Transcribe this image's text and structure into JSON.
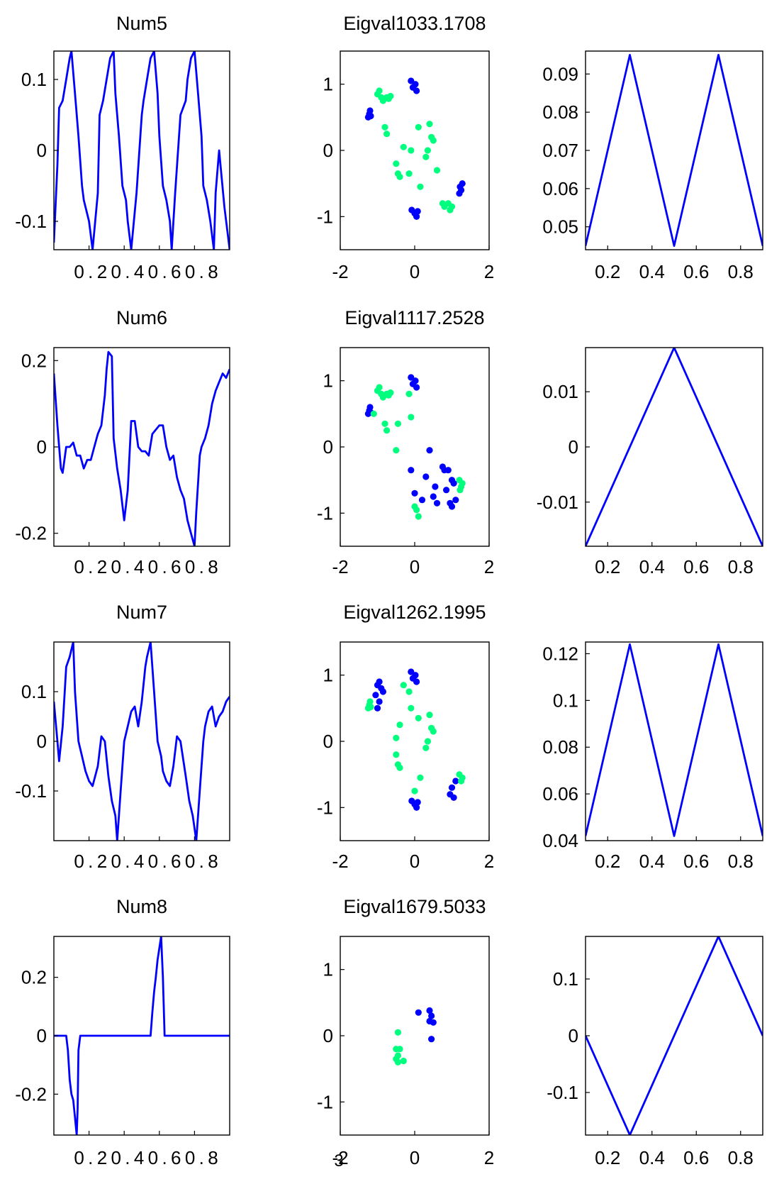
{
  "page_number": "3",
  "colors": {
    "line": "#0000ff",
    "cluster_a": "#0000ff",
    "cluster_b": "#00ff7f",
    "background": "#ffffff",
    "axis": "#000000"
  },
  "chart_data": [
    {
      "type": "line",
      "title": "Num5",
      "xlim": [
        0,
        1
      ],
      "ylim": [
        -0.14,
        0.14
      ],
      "x_tick_labels": [
        "0.20.40.60.8"
      ],
      "y_ticks": [
        0.1,
        0,
        -0.1
      ],
      "y_tick_labels": [
        "0.1",
        "0",
        "-0.1"
      ],
      "series": [
        {
          "x": [
            0,
            0.02,
            0.03,
            0.05,
            0.07,
            0.09,
            0.1,
            0.12,
            0.14,
            0.16,
            0.17,
            0.2,
            0.22,
            0.25,
            0.26,
            0.28,
            0.3,
            0.32,
            0.34,
            0.35,
            0.37,
            0.39,
            0.41,
            0.42,
            0.44,
            0.47,
            0.5,
            0.51,
            0.53,
            0.55,
            0.57,
            0.59,
            0.6,
            0.62,
            0.64,
            0.66,
            0.67,
            0.69,
            0.72,
            0.75,
            0.76,
            0.78,
            0.8,
            0.82,
            0.84,
            0.85,
            0.87,
            0.89,
            0.91,
            0.92,
            0.94,
            0.97,
            1
          ],
          "y": [
            -0.13,
            -0.02,
            0.06,
            0.07,
            0.1,
            0.13,
            0.14,
            0.08,
            0.02,
            -0.05,
            -0.07,
            -0.1,
            -0.14,
            -0.06,
            0.05,
            0.07,
            0.1,
            0.13,
            0.14,
            0.08,
            0.02,
            -0.05,
            -0.07,
            -0.1,
            -0.14,
            -0.06,
            0.05,
            0.07,
            0.1,
            0.13,
            0.14,
            0.08,
            0.02,
            -0.05,
            -0.07,
            -0.1,
            -0.14,
            -0.06,
            0.05,
            0.07,
            0.1,
            0.13,
            0.14,
            0.08,
            0.02,
            -0.05,
            -0.07,
            -0.1,
            -0.14,
            -0.06,
            0.0,
            -0.08,
            -0.14
          ]
        }
      ]
    },
    {
      "type": "scatter",
      "title": "Eigval1033.1708",
      "xlim": [
        -2,
        2
      ],
      "ylim": [
        -1.5,
        1.5
      ],
      "x_ticks": [
        -2,
        0,
        2
      ],
      "x_tick_labels": [
        "-2",
        "0",
        "2"
      ],
      "y_ticks": [
        1,
        0,
        -1
      ],
      "y_tick_labels": [
        "1",
        "0",
        "-1"
      ],
      "series": [
        {
          "x": [
            -1.25,
            -1.22,
            -1.2,
            -1.18,
            -0.1,
            -0.05,
            0.02,
            0.05,
            -0.08,
            0.0,
            0.05,
            0.08,
            1.22,
            1.25,
            1.28,
            1.2
          ],
          "y": [
            0.5,
            0.55,
            0.6,
            0.52,
            1.05,
            0.95,
            1.0,
            0.9,
            -0.9,
            -0.95,
            -1.0,
            -0.92,
            -0.55,
            -0.6,
            -0.5,
            -0.65
          ]
        },
        {
          "x": [
            -1.0,
            -0.95,
            -0.9,
            -0.85,
            -0.75,
            -0.7,
            -0.65,
            -0.8,
            -0.75,
            -0.5,
            -0.45,
            -0.4,
            -0.3,
            -0.15,
            -0.1,
            0.1,
            0.15,
            0.4,
            0.45,
            0.5,
            0.35,
            0.3,
            0.6,
            0.75,
            0.8,
            0.9,
            0.95,
            1.0
          ],
          "y": [
            0.85,
            0.9,
            0.8,
            0.75,
            0.8,
            0.78,
            0.82,
            0.35,
            0.25,
            -0.2,
            -0.35,
            -0.4,
            0.05,
            -0.35,
            0.0,
            0.35,
            -0.55,
            0.4,
            0.2,
            0.15,
            0.0,
            -0.1,
            -0.3,
            -0.8,
            -0.85,
            -0.8,
            -0.9,
            -0.85
          ]
        }
      ]
    },
    {
      "type": "line",
      "title": "",
      "xlim": [
        0.1,
        0.9
      ],
      "ylim": [
        0.044,
        0.096
      ],
      "x_ticks": [
        0.2,
        0.4,
        0.6,
        0.8
      ],
      "x_tick_labels": [
        "0.2",
        "0.4",
        "0.6",
        "0.8"
      ],
      "y_ticks": [
        0.09,
        0.08,
        0.07,
        0.06,
        0.05
      ],
      "y_tick_labels": [
        "0.09",
        "0.08",
        "0.07",
        "0.06",
        "0.05"
      ],
      "series": [
        {
          "x": [
            0.1,
            0.3,
            0.5,
            0.7,
            0.9
          ],
          "y": [
            0.045,
            0.095,
            0.045,
            0.095,
            0.045
          ]
        }
      ]
    },
    {
      "type": "line",
      "title": "Num6",
      "xlim": [
        0,
        1
      ],
      "ylim": [
        -0.23,
        0.23
      ],
      "x_tick_labels": [
        "0.20.40.60.8"
      ],
      "y_ticks": [
        0.2,
        0,
        -0.2
      ],
      "y_tick_labels": [
        "0.2",
        "0",
        "-0.2"
      ],
      "series": [
        {
          "x": [
            0,
            0.02,
            0.04,
            0.05,
            0.07,
            0.09,
            0.11,
            0.13,
            0.15,
            0.17,
            0.19,
            0.21,
            0.23,
            0.25,
            0.27,
            0.29,
            0.3,
            0.31,
            0.33,
            0.34,
            0.36,
            0.38,
            0.4,
            0.42,
            0.44,
            0.46,
            0.48,
            0.5,
            0.52,
            0.54,
            0.56,
            0.58,
            0.6,
            0.62,
            0.64,
            0.66,
            0.68,
            0.7,
            0.72,
            0.74,
            0.76,
            0.78,
            0.8,
            0.81,
            0.83,
            0.84,
            0.86,
            0.88,
            0.9,
            0.92,
            0.94,
            0.96,
            0.98,
            1
          ],
          "y": [
            0.17,
            0.05,
            -0.05,
            -0.06,
            0.0,
            0.0,
            0.01,
            -0.02,
            -0.02,
            -0.05,
            -0.03,
            -0.03,
            0.0,
            0.03,
            0.05,
            0.12,
            0.18,
            0.22,
            0.21,
            0.02,
            -0.05,
            -0.1,
            -0.17,
            -0.1,
            0.06,
            0.06,
            0.0,
            -0.01,
            -0.01,
            -0.02,
            0.03,
            0.04,
            0.05,
            0.05,
            0.0,
            -0.03,
            -0.02,
            -0.07,
            -0.1,
            -0.12,
            -0.17,
            -0.2,
            -0.23,
            -0.15,
            -0.02,
            0.0,
            0.02,
            0.05,
            0.1,
            0.13,
            0.15,
            0.17,
            0.16,
            0.18
          ]
        }
      ]
    },
    {
      "type": "scatter",
      "title": "Eigval1117.2528",
      "xlim": [
        -2,
        2
      ],
      "ylim": [
        -1.5,
        1.5
      ],
      "x_ticks": [
        -2,
        0,
        2
      ],
      "x_tick_labels": [
        "-2",
        "0",
        "2"
      ],
      "y_ticks": [
        1,
        0,
        -1
      ],
      "y_tick_labels": [
        "1",
        "0",
        "-1"
      ],
      "series": [
        {
          "x": [
            -1.25,
            -1.22,
            -1.2,
            -1.18,
            -0.1,
            -0.05,
            0.02,
            0.05,
            -0.1,
            0.0,
            0.3,
            0.2,
            0.4,
            0.5,
            0.55,
            0.6,
            0.75,
            0.8,
            0.85,
            0.95,
            1.0,
            1.05,
            1.1,
            1.0,
            0.9
          ],
          "y": [
            0.5,
            0.55,
            0.6,
            0.52,
            1.05,
            0.95,
            1.0,
            0.9,
            -0.35,
            -0.7,
            -0.45,
            -0.8,
            -0.05,
            -0.75,
            -0.6,
            -0.85,
            -0.3,
            -0.35,
            -0.65,
            -0.85,
            -0.9,
            -0.55,
            -0.8,
            -0.5,
            -0.35
          ]
        },
        {
          "x": [
            -1.0,
            -0.95,
            -0.9,
            -0.85,
            -0.75,
            -0.7,
            -0.65,
            -0.8,
            -0.75,
            -0.5,
            -0.45,
            -1.1,
            -0.15,
            -0.1,
            0.0,
            0.05,
            0.1,
            1.2,
            1.25,
            1.28,
            1.22
          ],
          "y": [
            0.85,
            0.9,
            0.8,
            0.75,
            0.8,
            0.78,
            0.82,
            0.35,
            0.25,
            -0.05,
            0.35,
            0.5,
            0.8,
            0.45,
            -0.9,
            -0.95,
            -1.05,
            -0.5,
            -0.6,
            -0.55,
            -0.65
          ]
        }
      ]
    },
    {
      "type": "line",
      "title": "",
      "xlim": [
        0.1,
        0.9
      ],
      "ylim": [
        -0.018,
        0.018
      ],
      "x_ticks": [
        0.2,
        0.4,
        0.6,
        0.8
      ],
      "x_tick_labels": [
        "0.2",
        "0.4",
        "0.6",
        "0.8"
      ],
      "y_ticks": [
        0.01,
        0,
        -0.01
      ],
      "y_tick_labels": [
        "0.01",
        "0",
        "-0.01"
      ],
      "series": [
        {
          "x": [
            0.1,
            0.5,
            0.9
          ],
          "y": [
            -0.018,
            0.018,
            -0.018
          ]
        }
      ]
    },
    {
      "type": "line",
      "title": "Num7",
      "xlim": [
        0,
        1
      ],
      "ylim": [
        -0.2,
        0.2
      ],
      "x_tick_labels": [
        "0.20.40.60.8"
      ],
      "y_ticks": [
        0.1,
        0,
        -0.1
      ],
      "y_tick_labels": [
        "0.1",
        "0",
        "-0.1"
      ],
      "series": [
        {
          "x": [
            0,
            0.02,
            0.03,
            0.05,
            0.07,
            0.09,
            0.11,
            0.12,
            0.14,
            0.16,
            0.18,
            0.2,
            0.22,
            0.25,
            0.27,
            0.29,
            0.31,
            0.33,
            0.35,
            0.36,
            0.38,
            0.4,
            0.42,
            0.44,
            0.46,
            0.48,
            0.5,
            0.52,
            0.53,
            0.55,
            0.57,
            0.59,
            0.61,
            0.62,
            0.64,
            0.66,
            0.68,
            0.7,
            0.72,
            0.75,
            0.77,
            0.79,
            0.81,
            0.83,
            0.85,
            0.86,
            0.88,
            0.9,
            0.92,
            0.94,
            0.96,
            0.98,
            1
          ],
          "y": [
            0.08,
            0.0,
            -0.04,
            0.03,
            0.15,
            0.17,
            0.2,
            0.1,
            0.0,
            -0.03,
            -0.06,
            -0.08,
            -0.09,
            -0.05,
            0.01,
            0.0,
            -0.07,
            -0.12,
            -0.15,
            -0.2,
            -0.1,
            0.0,
            0.03,
            0.06,
            0.07,
            0.03,
            0.08,
            0.15,
            0.17,
            0.2,
            0.1,
            0.0,
            -0.03,
            -0.06,
            -0.08,
            -0.09,
            -0.05,
            0.01,
            0.0,
            -0.07,
            -0.12,
            -0.15,
            -0.2,
            -0.1,
            0.0,
            0.03,
            0.06,
            0.07,
            0.03,
            0.05,
            0.06,
            0.08,
            0.09
          ]
        }
      ]
    },
    {
      "type": "scatter",
      "title": "Eigval1262.1995",
      "xlim": [
        -2,
        2
      ],
      "ylim": [
        -1.5,
        1.5
      ],
      "x_ticks": [
        -2,
        0,
        2
      ],
      "x_tick_labels": [
        "-2",
        "0",
        "2"
      ],
      "y_ticks": [
        1,
        0,
        -1
      ],
      "y_tick_labels": [
        "1",
        "0",
        "-1"
      ],
      "series": [
        {
          "x": [
            -1.0,
            -0.95,
            -0.9,
            -0.85,
            -1.05,
            -0.95,
            -1.0,
            -0.1,
            -0.05,
            0.02,
            0.05,
            -0.08,
            0.0,
            0.05,
            0.08,
            1.0,
            0.95,
            1.05,
            1.1
          ],
          "y": [
            0.85,
            0.9,
            0.8,
            0.75,
            0.7,
            0.6,
            0.5,
            1.05,
            0.95,
            1.0,
            0.9,
            -0.9,
            -0.95,
            -1.0,
            -0.92,
            -0.7,
            -0.8,
            -0.85,
            -0.6
          ]
        },
        {
          "x": [
            -1.25,
            -1.22,
            -1.2,
            -1.18,
            -0.5,
            -0.45,
            -0.4,
            -0.3,
            -0.15,
            -0.1,
            0.1,
            0.15,
            0.4,
            0.45,
            0.5,
            0.35,
            0.3,
            -0.5,
            -0.4,
            0.0,
            1.2,
            1.25,
            1.28
          ],
          "y": [
            0.5,
            0.55,
            0.6,
            0.52,
            -0.2,
            -0.35,
            -0.4,
            0.85,
            0.75,
            0.5,
            0.35,
            -0.55,
            0.4,
            0.2,
            0.15,
            0.0,
            -0.1,
            0.05,
            0.25,
            -0.75,
            -0.5,
            -0.6,
            -0.55
          ]
        }
      ]
    },
    {
      "type": "line",
      "title": "",
      "xlim": [
        0.1,
        0.9
      ],
      "ylim": [
        0.04,
        0.125
      ],
      "x_ticks": [
        0.2,
        0.4,
        0.6,
        0.8
      ],
      "x_tick_labels": [
        "0.2",
        "0.4",
        "0.6",
        "0.8"
      ],
      "y_ticks": [
        0.12,
        0.1,
        0.08,
        0.06,
        0.04
      ],
      "y_tick_labels": [
        "0.12",
        "0.1",
        "0.08",
        "0.06",
        "0.04"
      ],
      "series": [
        {
          "x": [
            0.1,
            0.3,
            0.5,
            0.7,
            0.9
          ],
          "y": [
            0.042,
            0.124,
            0.042,
            0.124,
            0.042
          ]
        }
      ]
    },
    {
      "type": "line",
      "title": "Num8",
      "xlim": [
        0,
        1
      ],
      "ylim": [
        -0.34,
        0.34
      ],
      "x_tick_labels": [
        "0.20.40.60.8"
      ],
      "y_ticks": [
        0.2,
        0,
        -0.2
      ],
      "y_tick_labels": [
        "0.2",
        "0",
        "-0.2"
      ],
      "series": [
        {
          "x": [
            0,
            0.07,
            0.08,
            0.09,
            0.1,
            0.11,
            0.12,
            0.13,
            0.135,
            0.14,
            0.15,
            0.55,
            0.56,
            0.57,
            0.58,
            0.59,
            0.6,
            0.61,
            0.62,
            0.63,
            1
          ],
          "y": [
            0,
            0,
            -0.05,
            -0.15,
            -0.2,
            -0.22,
            -0.28,
            -0.34,
            -0.25,
            -0.05,
            0,
            0,
            0.08,
            0.15,
            0.2,
            0.26,
            0.3,
            0.34,
            0.2,
            0,
            0
          ]
        }
      ]
    },
    {
      "type": "scatter",
      "title": "Eigval1679.5033",
      "xlim": [
        -2,
        2
      ],
      "ylim": [
        -1.5,
        1.5
      ],
      "x_ticks": [
        -2,
        0,
        2
      ],
      "x_tick_labels": [
        "-2",
        "0",
        "2"
      ],
      "y_ticks": [
        1,
        0,
        -1
      ],
      "y_tick_labels": [
        "1",
        "0",
        "-1"
      ],
      "series": [
        {
          "x": [
            0.1,
            0.4,
            0.45,
            0.5,
            0.4,
            0.45
          ],
          "y": [
            0.35,
            0.38,
            0.3,
            0.2,
            0.22,
            -0.05
          ]
        },
        {
          "x": [
            -0.5,
            -0.45,
            -0.4,
            -0.5,
            -0.45,
            -0.3,
            -0.45
          ],
          "y": [
            -0.2,
            -0.3,
            -0.2,
            -0.35,
            -0.4,
            -0.38,
            0.05
          ]
        }
      ]
    },
    {
      "type": "line",
      "title": "",
      "xlim": [
        0.1,
        0.9
      ],
      "ylim": [
        -0.175,
        0.175
      ],
      "x_ticks": [
        0.2,
        0.4,
        0.6,
        0.8
      ],
      "x_tick_labels": [
        "0.2",
        "0.4",
        "0.6",
        "0.8"
      ],
      "y_ticks": [
        0.1,
        0,
        -0.1
      ],
      "y_tick_labels": [
        "0.1",
        "0",
        "-0.1"
      ],
      "series": [
        {
          "x": [
            0.1,
            0.3,
            0.7,
            0.9
          ],
          "y": [
            0.0,
            -0.175,
            0.175,
            0.0
          ]
        }
      ]
    }
  ]
}
